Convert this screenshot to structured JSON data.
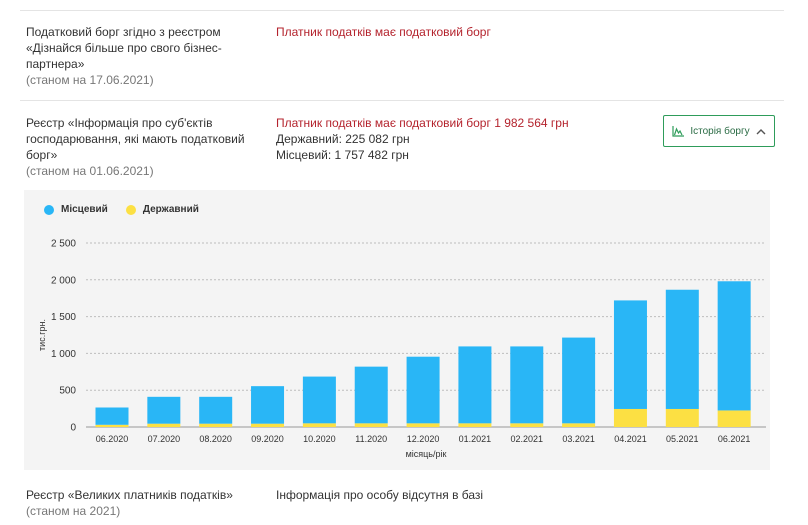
{
  "rows": [
    {
      "label": "Податковий борг згідно з реєстром «Дізнайся більше про свого бізнес-партнера»",
      "date": "(станом на 17.06.2021)",
      "value_lines": [
        "Платник податків має податковий борг"
      ]
    },
    {
      "label": "Реєстр «Інформація про суб'єктів господарювання, які мають податковий борг»",
      "date": "(станом на 01.06.2021)",
      "value_lines": [
        "Платник податків має податковий борг 1 982 564 грн",
        "Державний: 225 082 грн",
        "Місцевий: 1 757 482 грн"
      ]
    },
    {
      "label": "Реєстр «Великих платників податків»",
      "date": "(станом на 2021)",
      "value_lines": [
        "Інформація про особу відсутня в базі"
      ]
    }
  ],
  "history_button": {
    "label": "Історія боргу",
    "icon": "chart-icon",
    "toggle_icon": "chevron-up-icon"
  },
  "colors": {
    "local": "#29b6f6",
    "state": "#fce043",
    "accent": "#2e9c5a",
    "debt_red": "#b4232d"
  },
  "chart_data": {
    "type": "bar",
    "stacked": true,
    "categories": [
      "06.2020",
      "07.2020",
      "08.2020",
      "09.2020",
      "10.2020",
      "11.2020",
      "12.2020",
      "01.2021",
      "02.2021",
      "03.2021",
      "04.2021",
      "05.2021",
      "06.2021"
    ],
    "series": [
      {
        "name": "Місцевий",
        "color": "#29b6f6",
        "values": [
          235,
          365,
          365,
          510,
          635,
          770,
          905,
          1045,
          1045,
          1165,
          1475,
          1620,
          1755
        ]
      },
      {
        "name": "Державний",
        "color": "#fce043",
        "values": [
          30,
          45,
          45,
          45,
          50,
          50,
          50,
          50,
          50,
          50,
          245,
          245,
          225
        ]
      }
    ],
    "xlabel": "місяць/рік",
    "ylabel": "тис.грн.",
    "ylim": [
      0,
      2500
    ],
    "yticks": [
      0,
      500,
      1000,
      1500,
      2000,
      2500
    ],
    "ytick_labels": [
      "0",
      "500",
      "1 000",
      "1 500",
      "2 000",
      "2 500"
    ],
    "grid": true,
    "legend_position": "top-left"
  }
}
